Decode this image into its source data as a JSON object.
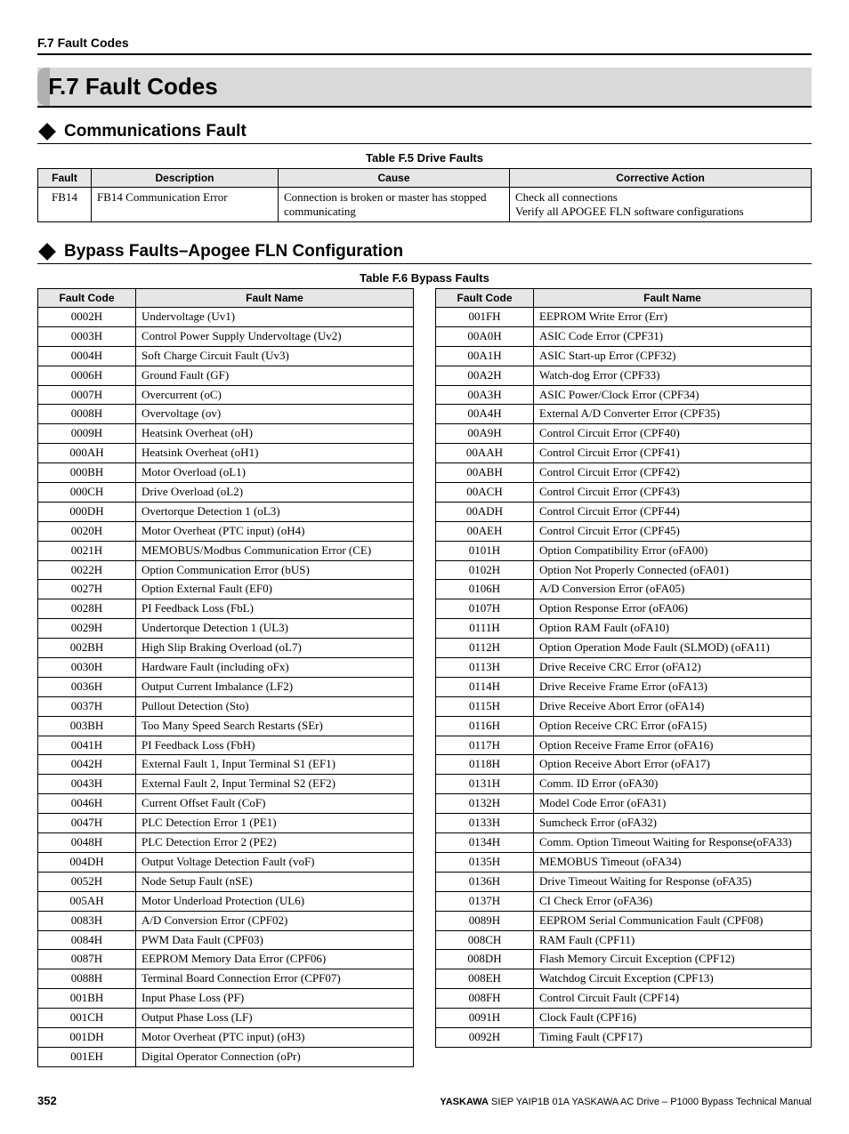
{
  "running_header": "F.7 Fault Codes",
  "section_title": "F.7   Fault Codes",
  "subsection1": "Communications Fault",
  "table_f5_caption": "Table F.5  Drive Faults",
  "drive_faults": {
    "headers": {
      "c1": "Fault",
      "c2": "Description",
      "c3": "Cause",
      "c4": "Corrective Action"
    },
    "row": {
      "c1": "FB14",
      "c2": "FB14 Communication Error",
      "c3": "Connection is broken or master has stopped communicating",
      "c4a": "Check all connections",
      "c4b": "Verify all APOGEE FLN software configurations"
    }
  },
  "subsection2": "Bypass Faults–Apogee FLN Configuration",
  "table_f6_caption": "Table F.6  Bypass Faults",
  "bypass_headers": {
    "code": "Fault Code",
    "name": "Fault Name"
  },
  "left": [
    {
      "code": "0002H",
      "name": "Undervoltage (Uv1)"
    },
    {
      "code": "0003H",
      "name": "Control Power Supply Undervoltage (Uv2)"
    },
    {
      "code": "0004H",
      "name": "Soft Charge Circuit Fault (Uv3)"
    },
    {
      "code": "0006H",
      "name": "Ground Fault (GF)"
    },
    {
      "code": "0007H",
      "name": "Overcurrent (oC)"
    },
    {
      "code": "0008H",
      "name": "Overvoltage (ov)"
    },
    {
      "code": "0009H",
      "name": "Heatsink Overheat (oH)"
    },
    {
      "code": "000AH",
      "name": "Heatsink Overheat (oH1)"
    },
    {
      "code": "000BH",
      "name": "Motor Overload (oL1)"
    },
    {
      "code": "000CH",
      "name": "Drive Overload (oL2)"
    },
    {
      "code": "000DH",
      "name": "Overtorque Detection 1 (oL3)"
    },
    {
      "code": "0020H",
      "name": "Motor Overheat (PTC input) (oH4)"
    },
    {
      "code": "0021H",
      "name": "MEMOBUS/Modbus Communication Error (CE)"
    },
    {
      "code": "0022H",
      "name": "Option Communication Error (bUS)"
    },
    {
      "code": "0027H",
      "name": "Option External Fault (EF0)"
    },
    {
      "code": "0028H",
      "name": "PI Feedback Loss (FbL)"
    },
    {
      "code": "0029H",
      "name": "Undertorque Detection 1 (UL3)"
    },
    {
      "code": "002BH",
      "name": "High Slip Braking Overload (oL7)"
    },
    {
      "code": "0030H",
      "name": "Hardware Fault (including oFx)"
    },
    {
      "code": "0036H",
      "name": "Output Current Imbalance (LF2)"
    },
    {
      "code": "0037H",
      "name": "Pullout Detection (Sto)"
    },
    {
      "code": "003BH",
      "name": "Too Many Speed Search Restarts (SEr)"
    },
    {
      "code": "0041H",
      "name": "PI Feedback Loss (FbH)"
    },
    {
      "code": "0042H",
      "name": "External Fault 1, Input Terminal S1 (EF1)"
    },
    {
      "code": "0043H",
      "name": "External Fault 2, Input Terminal S2 (EF2)"
    },
    {
      "code": "0046H",
      "name": "Current Offset Fault (CoF)"
    },
    {
      "code": "0047H",
      "name": "PLC Detection Error 1 (PE1)"
    },
    {
      "code": "0048H",
      "name": "PLC Detection Error 2 (PE2)"
    },
    {
      "code": "004DH",
      "name": "Output Voltage Detection Fault (voF)"
    },
    {
      "code": "0052H",
      "name": "Node Setup Fault (nSE)"
    },
    {
      "code": "005AH",
      "name": "Motor Underload Protection (UL6)"
    },
    {
      "code": "0083H",
      "name": "A/D Conversion Error (CPF02)"
    },
    {
      "code": "0084H",
      "name": "PWM Data Fault (CPF03)"
    },
    {
      "code": "0087H",
      "name": "EEPROM Memory Data Error (CPF06)"
    },
    {
      "code": "0088H",
      "name": "Terminal Board Connection Error (CPF07)"
    },
    {
      "code": "001BH",
      "name": "Input Phase Loss (PF)"
    },
    {
      "code": "001CH",
      "name": "Output Phase Loss (LF)"
    },
    {
      "code": "001DH",
      "name": "Motor Overheat (PTC input) (oH3)"
    },
    {
      "code": "001EH",
      "name": "Digital Operator Connection (oPr)"
    }
  ],
  "right": [
    {
      "code": "001FH",
      "name": "EEPROM Write Error (Err)"
    },
    {
      "code": "00A0H",
      "name": "ASIC Code Error (CPF31)"
    },
    {
      "code": "00A1H",
      "name": "ASIC Start-up Error (CPF32)"
    },
    {
      "code": "00A2H",
      "name": "Watch-dog Error (CPF33)"
    },
    {
      "code": "00A3H",
      "name": "ASIC Power/Clock Error (CPF34)"
    },
    {
      "code": "00A4H",
      "name": "External A/D Converter Error (CPF35)"
    },
    {
      "code": "00A9H",
      "name": "Control Circuit Error (CPF40)"
    },
    {
      "code": "00AAH",
      "name": "Control Circuit Error (CPF41)"
    },
    {
      "code": "00ABH",
      "name": "Control Circuit Error (CPF42)"
    },
    {
      "code": "00ACH",
      "name": "Control Circuit Error (CPF43)"
    },
    {
      "code": "00ADH",
      "name": "Control Circuit Error (CPF44)"
    },
    {
      "code": "00AEH",
      "name": "Control Circuit Error (CPF45)"
    },
    {
      "code": "0101H",
      "name": "Option Compatibility Error (oFA00)"
    },
    {
      "code": "0102H",
      "name": "Option Not Properly Connected (oFA01)"
    },
    {
      "code": "0106H",
      "name": "A/D Conversion Error (oFA05)"
    },
    {
      "code": "0107H",
      "name": "Option Response Error (oFA06)"
    },
    {
      "code": "0111H",
      "name": "Option RAM Fault (oFA10)"
    },
    {
      "code": "0112H",
      "name": "Option Operation Mode Fault (SLMOD) (oFA11)"
    },
    {
      "code": "0113H",
      "name": "Drive Receive CRC Error (oFA12)"
    },
    {
      "code": "0114H",
      "name": "Drive Receive Frame Error (oFA13)"
    },
    {
      "code": "0115H",
      "name": "Drive Receive Abort Error (oFA14)"
    },
    {
      "code": "0116H",
      "name": "Option Receive CRC Error (oFA15)"
    },
    {
      "code": "0117H",
      "name": "Option Receive Frame Error (oFA16)"
    },
    {
      "code": "0118H",
      "name": "Option Receive Abort Error (oFA17)"
    },
    {
      "code": "0131H",
      "name": "Comm. ID Error (oFA30)"
    },
    {
      "code": "0132H",
      "name": "Model Code Error (oFA31)"
    },
    {
      "code": "0133H",
      "name": "Sumcheck Error (oFA32)"
    },
    {
      "code": "0134H",
      "name": "Comm. Option Timeout Waiting for Response(oFA33)"
    },
    {
      "code": "0135H",
      "name": "MEMOBUS Timeout (oFA34)"
    },
    {
      "code": "0136H",
      "name": "Drive Timeout Waiting for Response (oFA35)"
    },
    {
      "code": "0137H",
      "name": "CI Check Error (oFA36)"
    },
    {
      "code": "0089H",
      "name": "EEPROM Serial Communication Fault (CPF08)"
    },
    {
      "code": "008CH",
      "name": "RAM Fault (CPF11)"
    },
    {
      "code": "008DH",
      "name": "Flash Memory Circuit Exception (CPF12)"
    },
    {
      "code": "008EH",
      "name": "Watchdog Circuit Exception (CPF13)"
    },
    {
      "code": "008FH",
      "name": "Control Circuit Fault (CPF14)"
    },
    {
      "code": "0091H",
      "name": "Clock Fault (CPF16)"
    },
    {
      "code": "0092H",
      "name": "Timing Fault (CPF17)"
    }
  ],
  "footer": {
    "page": "352",
    "pub_bold": "YASKAWA",
    "pub_rest": " SIEP YAIP1B 01A YASKAWA AC Drive – P1000 Bypass Technical Manual"
  }
}
